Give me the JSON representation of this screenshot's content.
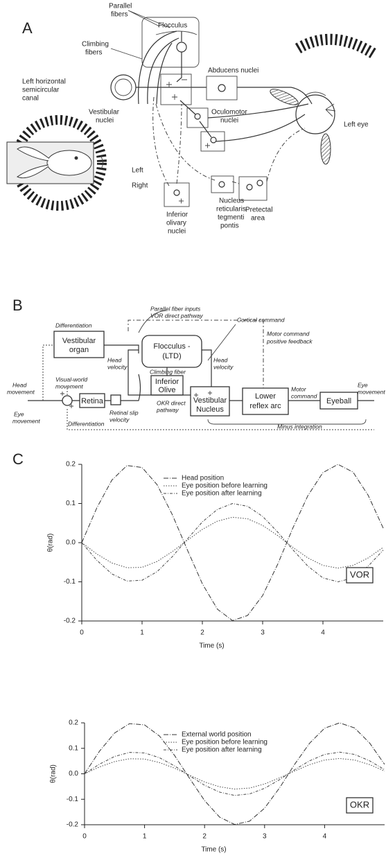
{
  "panel_labels": [
    "A",
    "B",
    "C"
  ],
  "diagram_a": {
    "labels": [
      "Parallel",
      "fibers",
      "Flocculus",
      "Climbing",
      "fibers",
      "Left horizontal",
      "semicircular",
      "canal",
      "Abducens nuclei",
      "Vestibular",
      "nuclei",
      "Oculomotor",
      "nuclei",
      "Left eye",
      "Left",
      "Right",
      "Inferior",
      "olivary",
      "nuclei",
      "Nucleus",
      "reticularis",
      "tegmenti",
      "pontis",
      "Pretectal",
      "area"
    ]
  },
  "diagram_b": {
    "labels": [
      "Parallel fiber inputs",
      "VOR direct pathway",
      "Cortical command",
      "Differentiation",
      "Vestibular",
      "organ",
      "Flocculus -",
      "(LTD)",
      "Motor command",
      "positive feedback",
      "Head",
      "velocity",
      "Head",
      "velocity",
      "Climbing fiber",
      "Inferior",
      "Olive",
      "Head",
      "movement",
      "Visual-world",
      "movement",
      "Retina",
      "Retinal slip",
      "velocity",
      "OKR direct",
      "pathway",
      "Vestibular",
      "Nucleus",
      "Lower",
      "reflex arc",
      "Motor",
      "command",
      "Eyeball",
      "Eye",
      "movement",
      "Eye",
      "movement",
      "Differentiation",
      "Minus integration"
    ]
  },
  "chart_data": [
    {
      "type": "line",
      "ylabel": "θ(rad)",
      "xlabel": "Time (s)",
      "annotation": "VOR",
      "x": [
        0,
        0.25,
        0.5,
        0.75,
        1,
        1.25,
        1.5,
        1.75,
        2,
        2.25,
        2.5,
        2.75,
        3,
        3.25,
        3.5,
        3.75,
        4,
        4.25,
        4.5,
        4.75,
        5
      ],
      "series": [
        {
          "name": "Head position",
          "color": "#333333",
          "values": [
            0,
            0.089,
            0.16,
            0.197,
            0.192,
            0.148,
            0.072,
            -0.018,
            -0.105,
            -0.17,
            -0.199,
            -0.186,
            -0.135,
            -0.055,
            0.037,
            0.12,
            0.179,
            0.2,
            0.18,
            0.121,
            0.037
          ]
        },
        {
          "name": "Eye position before learning",
          "color": "#444444",
          "values": [
            0,
            -0.029,
            -0.052,
            -0.064,
            -0.063,
            -0.048,
            -0.023,
            0.006,
            0.034,
            0.055,
            0.065,
            0.061,
            0.044,
            0.018,
            -0.012,
            -0.039,
            -0.058,
            -0.065,
            -0.058,
            -0.039,
            -0.012
          ]
        },
        {
          "name": "Eye position after learning",
          "color": "#444444",
          "values": [
            0,
            -0.045,
            -0.08,
            -0.098,
            -0.096,
            -0.074,
            -0.036,
            0.009,
            0.053,
            0.085,
            0.1,
            0.093,
            0.067,
            0.027,
            -0.018,
            -0.06,
            -0.09,
            -0.1,
            -0.09,
            -0.06,
            -0.019
          ]
        }
      ],
      "xlim": [
        0,
        5
      ],
      "xticks": [
        0,
        1,
        2,
        3,
        4
      ],
      "ylim": [
        -0.2,
        0.2
      ],
      "yticks": [
        0.2,
        0.1,
        {
          "value": 0,
          "label": "0.0"
        },
        -0.1,
        -0.2
      ]
    },
    {
      "type": "line",
      "ylabel": "θ(rad)",
      "xlabel": "Time (s)",
      "annotation": "OKR",
      "x": [
        0,
        0.25,
        0.5,
        0.75,
        1,
        1.25,
        1.5,
        1.75,
        2,
        2.25,
        2.5,
        2.75,
        3,
        3.25,
        3.5,
        3.75,
        4,
        4.25,
        4.5,
        4.75,
        5
      ],
      "series": [
        {
          "name": "External world position",
          "color": "#333333",
          "values": [
            0,
            0.089,
            0.16,
            0.197,
            0.192,
            0.148,
            0.072,
            -0.018,
            -0.105,
            -0.17,
            -0.199,
            -0.186,
            -0.135,
            -0.055,
            0.037,
            0.12,
            0.179,
            0.2,
            0.18,
            0.121,
            0.037
          ]
        },
        {
          "name": "Eye position before learning",
          "color": "#444444",
          "values": [
            0,
            0.027,
            0.048,
            0.059,
            0.058,
            0.044,
            0.022,
            -0.006,
            -0.032,
            -0.051,
            -0.06,
            -0.056,
            -0.04,
            -0.016,
            0.011,
            0.036,
            0.054,
            0.06,
            0.054,
            0.036,
            0.011
          ]
        },
        {
          "name": "Eye position after learning",
          "color": "#444444",
          "values": [
            0,
            0.038,
            0.068,
            0.084,
            0.082,
            0.063,
            0.031,
            -0.008,
            -0.045,
            -0.072,
            -0.085,
            -0.079,
            -0.057,
            -0.023,
            0.016,
            0.051,
            0.076,
            0.085,
            0.076,
            0.051,
            0.016
          ]
        }
      ],
      "xlim": [
        0,
        5
      ],
      "xticks": [
        0,
        1,
        2,
        3,
        4
      ],
      "ylim": [
        -0.2,
        0.2
      ],
      "yticks": [
        0.2,
        0.1,
        {
          "value": 0,
          "label": "0.0"
        },
        -0.1,
        -0.2
      ]
    }
  ]
}
